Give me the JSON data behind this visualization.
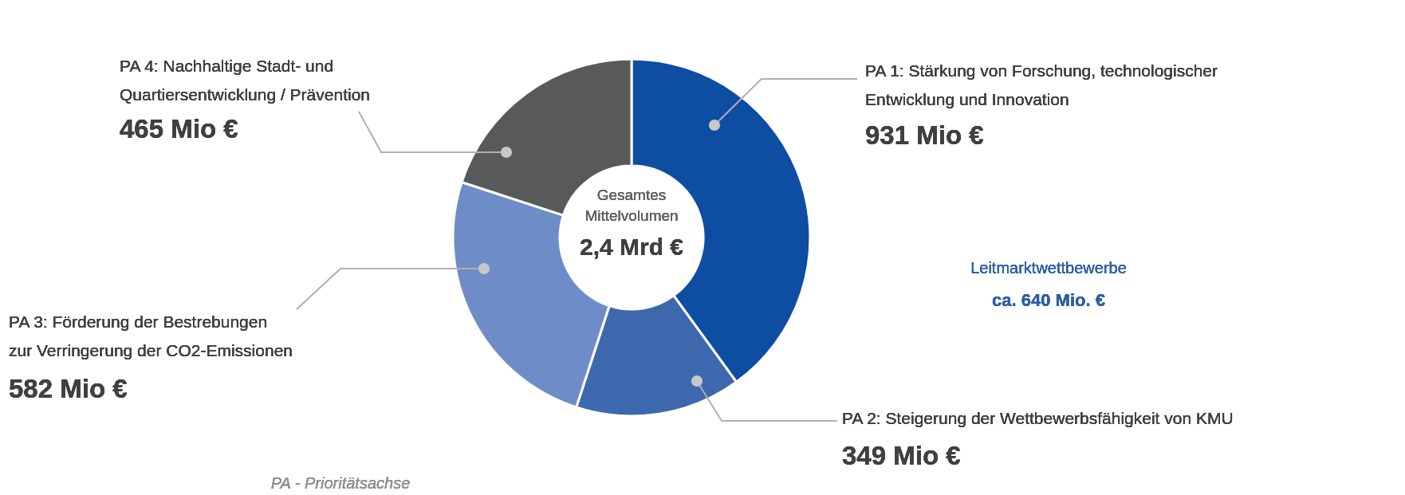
{
  "chart_data": {
    "type": "donut",
    "categories": [
      "PA 1: Stärkung von Forschung, technologischer Entwicklung und Innovation",
      "PA 2: Steigerung der Wettbewerbsfähigkeit von KMU",
      "PA 3: Förderung der Bestrebungen zur Verringerung der CO2-Emissionen",
      "PA 4: Nachhaltige Stadt- und Quartiersentwicklung / Prävention"
    ],
    "values": [
      931,
      349,
      582,
      465
    ],
    "colors": [
      "#0d4ea3",
      "#3e68ae",
      "#6e8cc8",
      "#58595b"
    ],
    "value_labels": [
      "931 Mio €",
      "349 Mio €",
      "582 Mio €",
      "465 Mio €"
    ],
    "annotations": [
      "Gesamtes",
      "Mittelvolumen",
      "2,4 Mrd €",
      "Leitmarktwettbewerbe",
      "ca. 640 Mio. €",
      "PA - Prioritätsachse"
    ]
  }
}
